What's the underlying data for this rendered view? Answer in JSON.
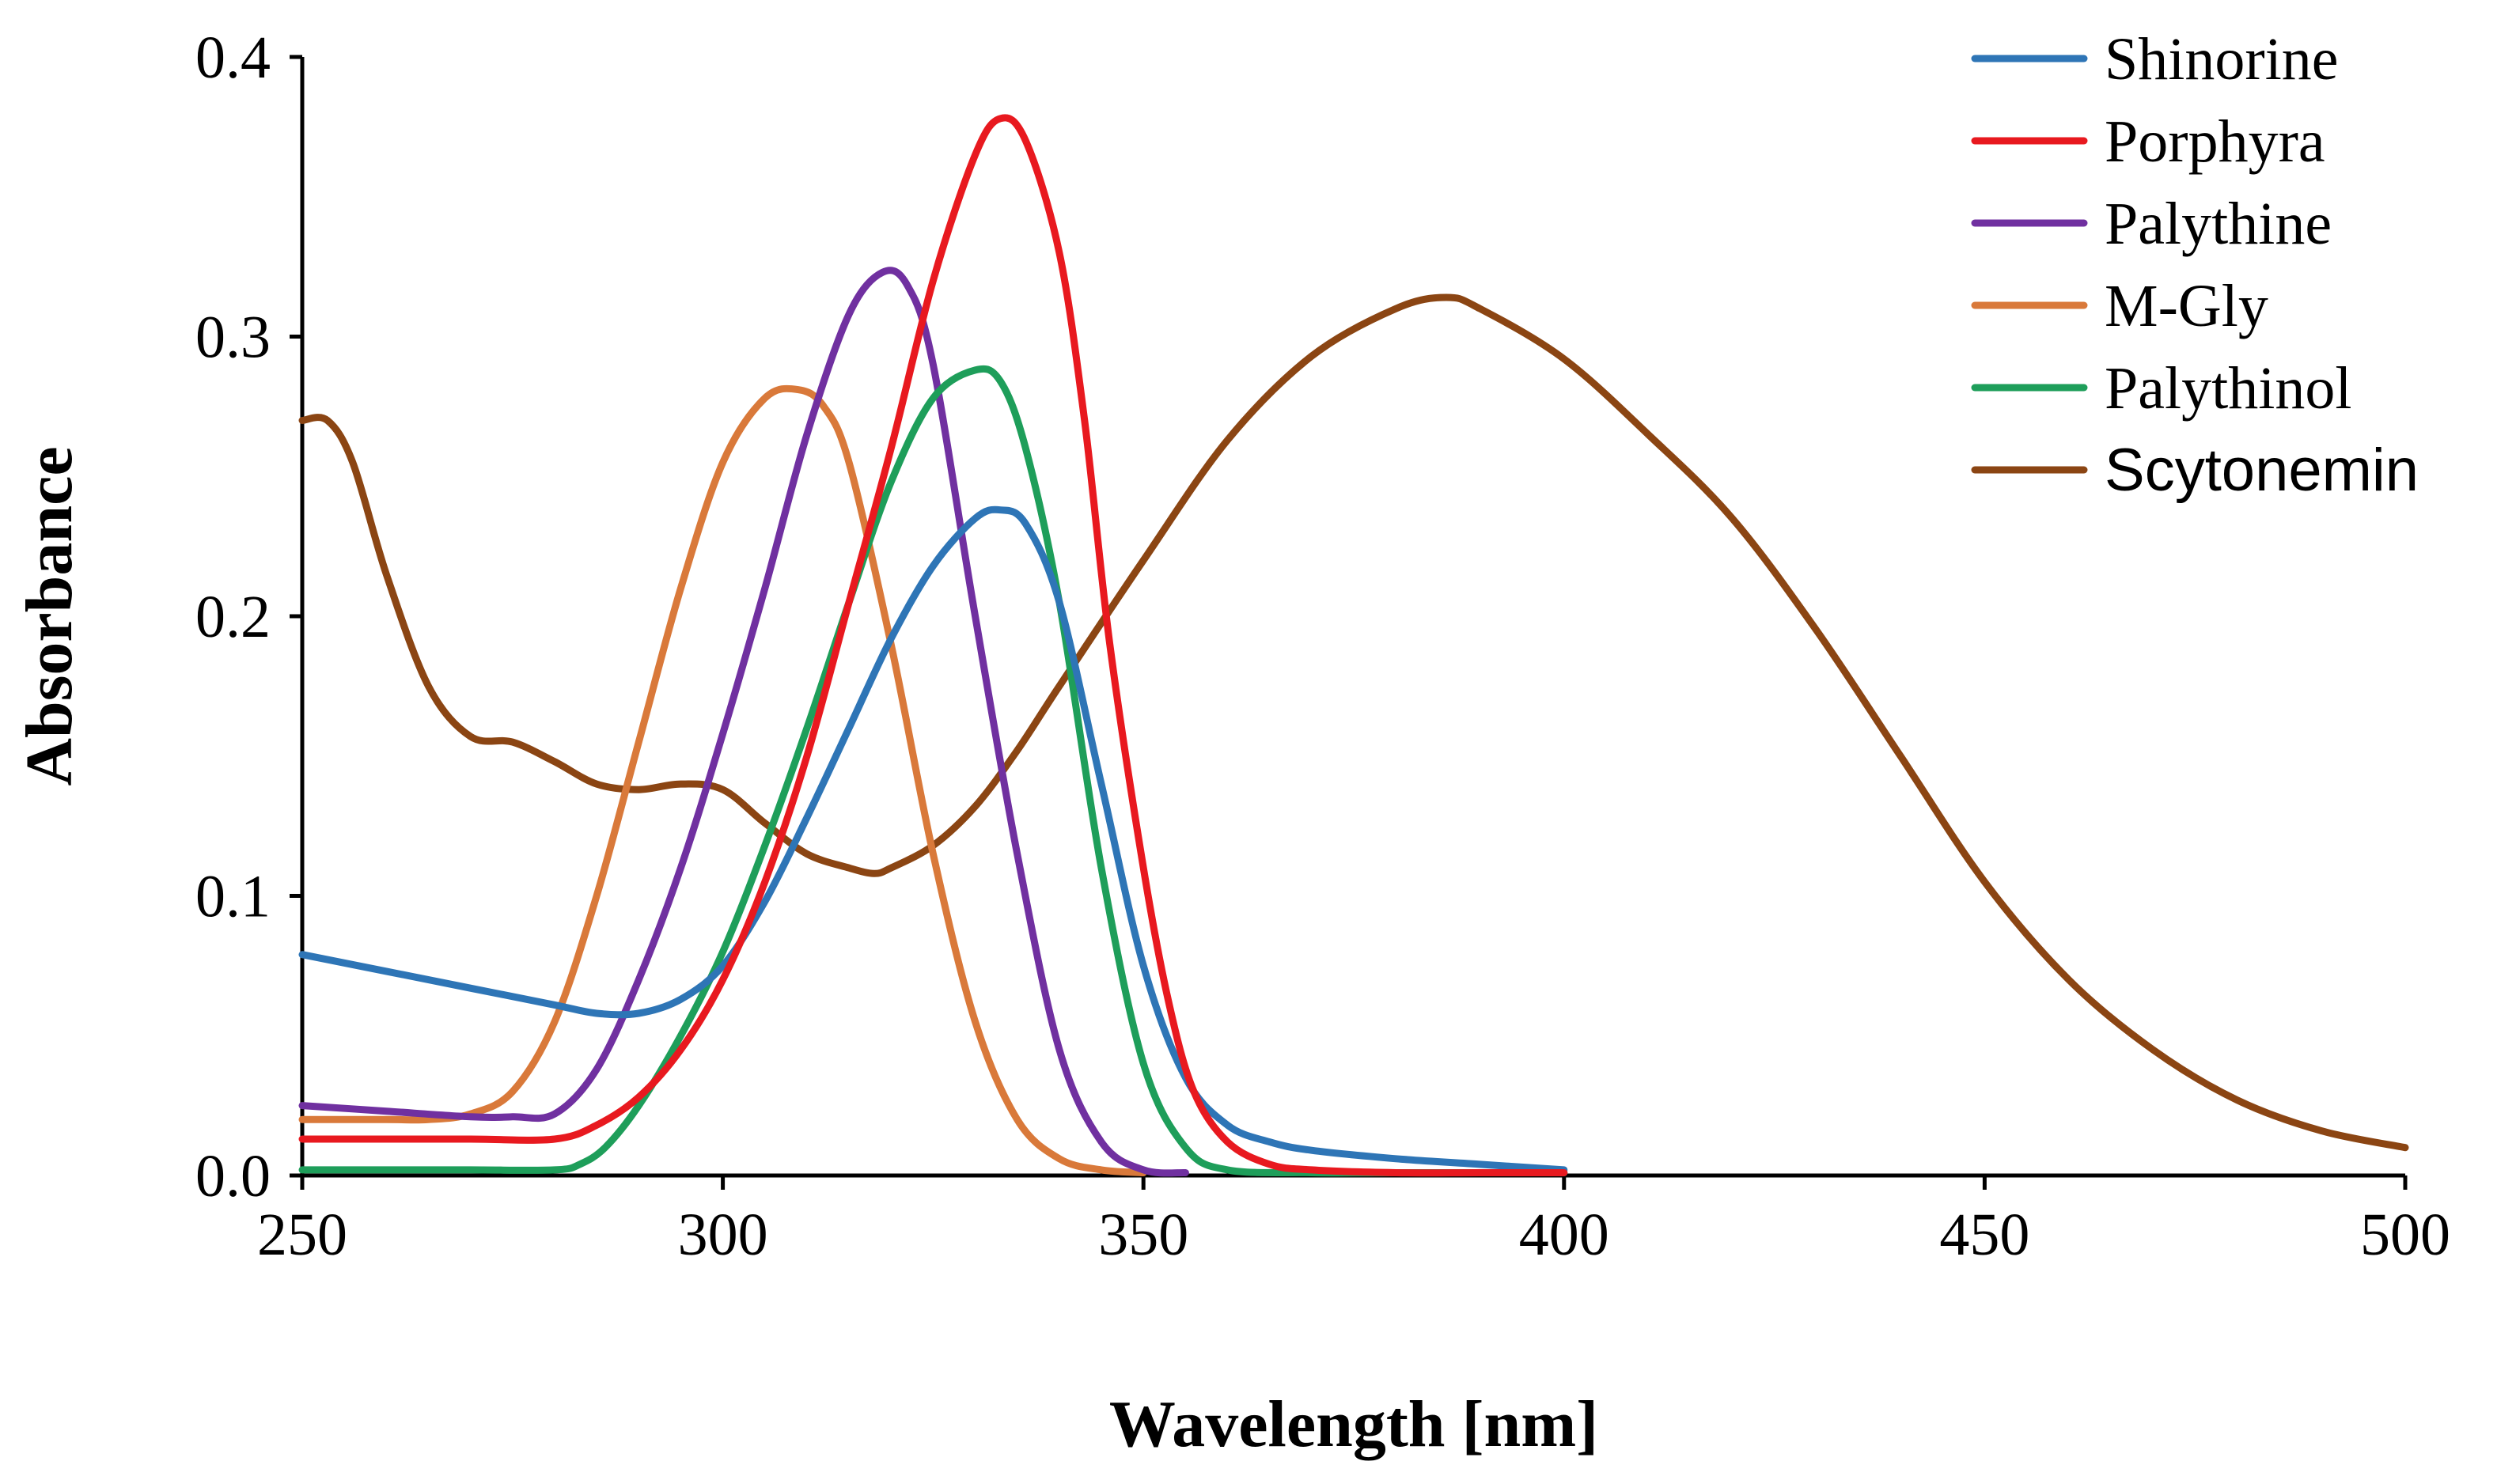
{
  "chart_data": {
    "type": "line",
    "title": "",
    "xlabel": "Wavelength [nm]",
    "ylabel": "Absorbance",
    "xlim": [
      250,
      500
    ],
    "ylim": [
      0,
      0.4
    ],
    "x_ticks": [
      250,
      300,
      350,
      400,
      450,
      500
    ],
    "x_tick_labels": [
      "250",
      "300",
      "350",
      "400",
      "450",
      "500"
    ],
    "y_ticks": [
      0,
      0.1,
      0.2,
      0.3,
      0.4
    ],
    "y_tick_labels": [
      "0.0",
      "0.1",
      "0.2",
      "0.3",
      "0.4"
    ],
    "grid": false,
    "legend_position": "top-right",
    "series": [
      {
        "name": "Shinorine",
        "color": "#2E75B6",
        "x": [
          250,
          260,
          270,
          280,
          285,
          290,
          295,
          300,
          305,
          310,
          315,
          320,
          325,
          330,
          333,
          336,
          340,
          345,
          350,
          355,
          360,
          365,
          370,
          380,
          390,
          400
        ],
        "y": [
          0.079,
          0.073,
          0.067,
          0.061,
          0.058,
          0.058,
          0.063,
          0.075,
          0.098,
          0.128,
          0.16,
          0.192,
          0.218,
          0.235,
          0.238,
          0.233,
          0.205,
          0.14,
          0.075,
          0.035,
          0.018,
          0.012,
          0.009,
          0.006,
          0.004,
          0.002
        ]
      },
      {
        "name": "Porphyra",
        "color": "#E8191F",
        "x": [
          250,
          260,
          270,
          280,
          285,
          290,
          295,
          300,
          305,
          310,
          315,
          320,
          325,
          330,
          333,
          336,
          340,
          343,
          346,
          350,
          353,
          356,
          360,
          365,
          370,
          380,
          390,
          400
        ],
        "y": [
          0.013,
          0.013,
          0.013,
          0.013,
          0.018,
          0.028,
          0.045,
          0.07,
          0.105,
          0.15,
          0.205,
          0.26,
          0.32,
          0.365,
          0.378,
          0.37,
          0.33,
          0.27,
          0.19,
          0.11,
          0.062,
          0.03,
          0.012,
          0.004,
          0.002,
          0.001,
          0.001,
          0.001
        ]
      },
      {
        "name": "Palythine",
        "color": "#7030A0",
        "x": [
          250,
          260,
          270,
          275,
          280,
          285,
          290,
          295,
          300,
          305,
          310,
          315,
          319,
          322,
          325,
          330,
          335,
          340,
          345,
          350,
          355
        ],
        "y": [
          0.025,
          0.023,
          0.021,
          0.021,
          0.022,
          0.038,
          0.07,
          0.11,
          0.158,
          0.21,
          0.265,
          0.308,
          0.323,
          0.318,
          0.29,
          0.2,
          0.115,
          0.045,
          0.012,
          0.002,
          0.001
        ]
      },
      {
        "name": "M-Gly",
        "color": "#D9793A",
        "x": [
          250,
          260,
          265,
          270,
          275,
          280,
          285,
          290,
          295,
          300,
          305,
          309,
          312,
          315,
          320,
          325,
          330,
          335,
          340,
          345,
          350
        ],
        "y": [
          0.02,
          0.02,
          0.02,
          0.022,
          0.03,
          0.055,
          0.1,
          0.155,
          0.21,
          0.255,
          0.278,
          0.281,
          0.275,
          0.255,
          0.19,
          0.115,
          0.055,
          0.02,
          0.006,
          0.002,
          0.001
        ]
      },
      {
        "name": "Palythinol",
        "color": "#1E9E5A",
        "x": [
          250,
          260,
          270,
          280,
          283,
          286,
          290,
          295,
          300,
          305,
          310,
          315,
          320,
          325,
          330,
          333,
          336,
          340,
          345,
          350,
          355,
          360,
          370,
          380,
          400
        ],
        "y": [
          0.002,
          0.002,
          0.002,
          0.002,
          0.004,
          0.01,
          0.025,
          0.05,
          0.08,
          0.118,
          0.16,
          0.205,
          0.248,
          0.278,
          0.288,
          0.284,
          0.26,
          0.205,
          0.11,
          0.04,
          0.01,
          0.002,
          0.001,
          0.001,
          0.001
        ]
      },
      {
        "name": "Scytonemin",
        "color": "#8B4513",
        "x": [
          250,
          253,
          256,
          260,
          265,
          270,
          275,
          280,
          285,
          290,
          295,
          300,
          305,
          310,
          315,
          318,
          320,
          325,
          330,
          335,
          340,
          350,
          360,
          370,
          380,
          386,
          390,
          400,
          410,
          420,
          430,
          440,
          450,
          460,
          470,
          480,
          490,
          500
        ],
        "y": [
          0.27,
          0.27,
          0.255,
          0.215,
          0.175,
          0.157,
          0.155,
          0.148,
          0.14,
          0.138,
          0.14,
          0.138,
          0.126,
          0.115,
          0.11,
          0.108,
          0.11,
          0.118,
          0.132,
          0.152,
          0.175,
          0.22,
          0.263,
          0.293,
          0.31,
          0.314,
          0.31,
          0.292,
          0.265,
          0.235,
          0.195,
          0.15,
          0.105,
          0.07,
          0.045,
          0.027,
          0.016,
          0.01
        ]
      }
    ]
  }
}
